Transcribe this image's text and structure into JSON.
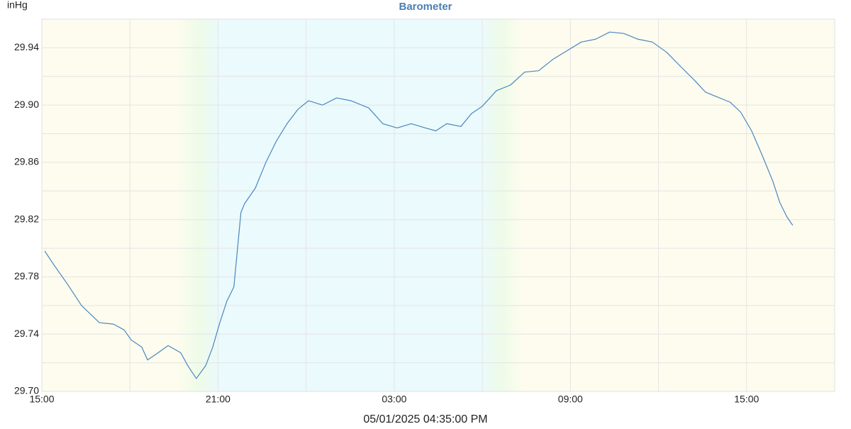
{
  "chart_data": {
    "type": "line",
    "title": "Barometer",
    "y_label": "inHg",
    "x_label": "05/01/2025 04:35:00 PM",
    "color": "#4a86c0",
    "grid": true,
    "xlim": [
      0,
      27
    ],
    "xticks": [
      {
        "value": 0,
        "label": "15:00"
      },
      {
        "value": 6,
        "label": "21:00"
      },
      {
        "value": 12,
        "label": "03:00"
      },
      {
        "value": 18,
        "label": "09:00"
      },
      {
        "value": 24,
        "label": "15:00"
      }
    ],
    "minor_xticks": [
      3,
      9,
      15,
      21
    ],
    "ylim": [
      29.7,
      29.96
    ],
    "yticks": [
      {
        "value": 29.7,
        "label": "29.70"
      },
      29.74,
      29.78,
      29.82,
      29.86,
      {
        "value": 29.9,
        "label": "29.90"
      },
      29.94
    ],
    "minor_yticks": [
      29.72,
      29.76,
      29.8,
      29.84,
      29.88,
      29.92,
      29.96
    ],
    "x": [
      0.1,
      0.39,
      0.87,
      1.35,
      1.96,
      2.44,
      2.8,
      3.04,
      3.4,
      3.6,
      3.89,
      4.3,
      4.73,
      4.97,
      5.26,
      5.58,
      5.82,
      6.06,
      6.3,
      6.54,
      6.78,
      6.9,
      7.27,
      7.63,
      7.99,
      8.35,
      8.72,
      9.08,
      9.56,
      10.04,
      10.53,
      11.13,
      11.61,
      12.1,
      12.58,
      13.06,
      13.42,
      13.79,
      14.27,
      14.63,
      14.99,
      15.48,
      15.96,
      16.44,
      16.92,
      17.41,
      17.89,
      18.37,
      18.86,
      19.34,
      19.82,
      20.3,
      20.79,
      21.27,
      21.75,
      22.24,
      22.6,
      22.96,
      23.44,
      23.8,
      24.17,
      24.53,
      24.89,
      25.13,
      25.37,
      25.57
    ],
    "values": [
      29.798,
      29.789,
      29.775,
      29.76,
      29.748,
      29.747,
      29.743,
      29.736,
      29.731,
      29.722,
      29.726,
      29.732,
      29.727,
      29.718,
      29.709,
      29.718,
      29.731,
      29.748,
      29.763,
      29.773,
      29.825,
      29.831,
      29.842,
      29.86,
      29.875,
      29.887,
      29.897,
      29.903,
      29.9,
      29.905,
      29.903,
      29.898,
      29.887,
      29.884,
      29.887,
      29.884,
      29.882,
      29.887,
      29.885,
      29.894,
      29.899,
      29.91,
      29.914,
      29.923,
      29.924,
      29.932,
      29.938,
      29.944,
      29.946,
      29.951,
      29.95,
      29.946,
      29.944,
      29.937,
      29.927,
      29.917,
      29.909,
      29.906,
      29.902,
      29.895,
      29.882,
      29.865,
      29.847,
      29.832,
      29.822,
      29.816
    ]
  }
}
